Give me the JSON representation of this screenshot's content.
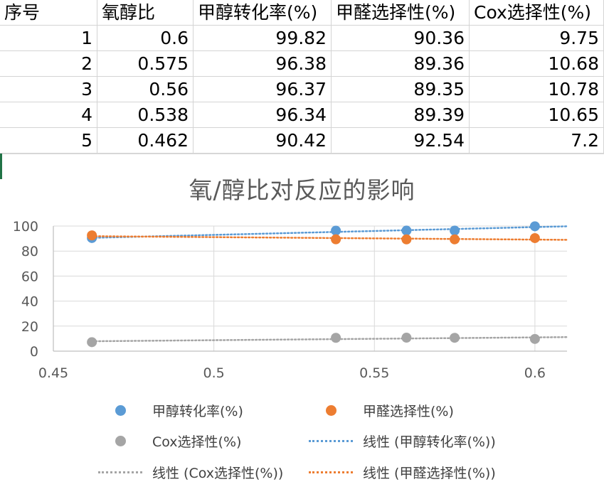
{
  "sheet": {
    "headers": [
      "序号",
      "氧醇比",
      "甲醇转化率(%)",
      "甲醛选择性(%)",
      "Cox选择性(%)"
    ],
    "rows": [
      [
        "1",
        "0.6",
        "99.82",
        "90.36",
        "9.75"
      ],
      [
        "2",
        "0.575",
        "96.38",
        "89.36",
        "10.68"
      ],
      [
        "3",
        "0.56",
        "96.37",
        "89.35",
        "10.78"
      ],
      [
        "4",
        "0.538",
        "96.34",
        "89.39",
        "10.65"
      ],
      [
        "5",
        "0.462",
        "90.42",
        "92.54",
        "7.2"
      ]
    ]
  },
  "chart_data": {
    "type": "scatter",
    "title": "氧/醇比对反应的影响",
    "xlim": [
      0.45,
      0.61
    ],
    "ylim": [
      0,
      100
    ],
    "xticks": [
      "0.45",
      "0.5",
      "0.55",
      "0.6"
    ],
    "yticks": [
      "0",
      "20",
      "40",
      "60",
      "80",
      "100"
    ],
    "grid": true,
    "legend_position": "bottom",
    "x": [
      0.6,
      0.575,
      0.56,
      0.538,
      0.462
    ],
    "series": [
      {
        "name": "甲醇转化率(%)",
        "color": "#5b9bd5",
        "values": [
          99.82,
          96.38,
          96.37,
          96.34,
          90.42
        ]
      },
      {
        "name": "甲醛选择性(%)",
        "color": "#ed7d31",
        "values": [
          90.36,
          89.36,
          89.35,
          89.39,
          92.54
        ]
      },
      {
        "name": "Cox选择性(%)",
        "color": "#a5a5a5",
        "values": [
          9.75,
          10.68,
          10.78,
          10.65,
          7.2
        ]
      }
    ],
    "trendlines": [
      {
        "name": "线性 (甲醇转化率(%))",
        "color": "#5b9bd5",
        "series_index": 0
      },
      {
        "name": "线性 (Cox选择性(%))",
        "color": "#a5a5a5",
        "series_index": 2
      },
      {
        "name": "线性 (甲醛选择性(%))",
        "color": "#ed7d31",
        "series_index": 1
      }
    ]
  },
  "legend": {
    "items": [
      {
        "label": "甲醇转化率(%)",
        "kind": "dot",
        "color": "#5b9bd5"
      },
      {
        "label": "甲醛选择性(%)",
        "kind": "dot",
        "color": "#ed7d31"
      },
      {
        "label": "Cox选择性(%)",
        "kind": "dot",
        "color": "#a5a5a5"
      },
      {
        "label": "线性 (甲醇转化率(%))",
        "kind": "dash",
        "color": "#5b9bd5"
      },
      {
        "label": "线性 (Cox选择性(%))",
        "kind": "dash",
        "color": "#a5a5a5"
      },
      {
        "label": "线性 (甲醛选择性(%))",
        "kind": "dash",
        "color": "#ed7d31"
      }
    ]
  }
}
